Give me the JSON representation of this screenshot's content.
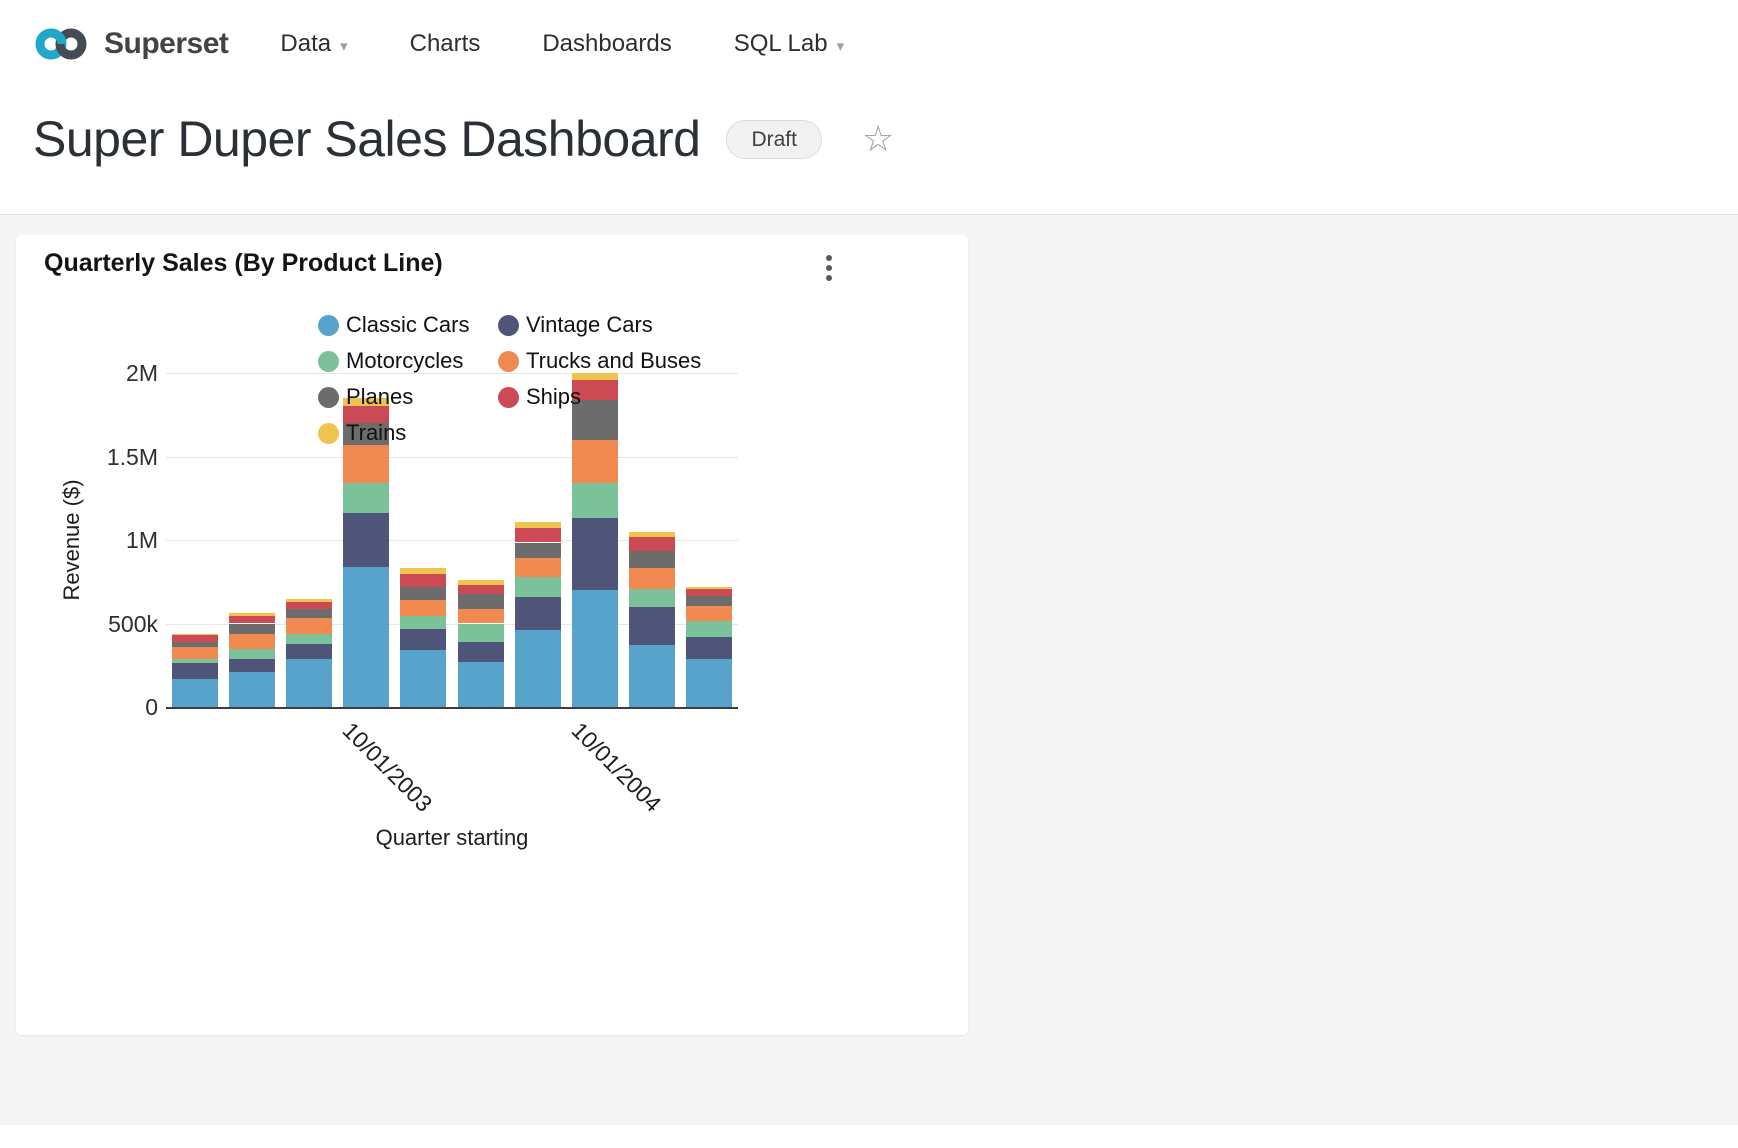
{
  "nav": {
    "brand": "Superset",
    "items": [
      {
        "label": "Data",
        "has_caret": true
      },
      {
        "label": "Charts",
        "has_caret": false
      },
      {
        "label": "Dashboards",
        "has_caret": false
      },
      {
        "label": "SQL Lab",
        "has_caret": true
      }
    ]
  },
  "header": {
    "title": "Super Duper Sales Dashboard",
    "badge": "Draft",
    "favorite_icon": "star-outline"
  },
  "chart_card": {
    "title": "Quarterly Sales (By Product Line)",
    "menu_icon": "kebab-menu"
  },
  "brand_colors": {
    "logo_teal": "#20A7C9",
    "logo_dark": "#444B54"
  },
  "chart_data": {
    "type": "bar",
    "stacked": true,
    "title": "Quarterly Sales (By Product Line)",
    "xlabel": "Quarter starting",
    "ylabel": "Revenue ($)",
    "ylim": [
      0,
      2000000
    ],
    "grid": true,
    "legend_position": "top",
    "num_bars": 10,
    "yticks": [
      {
        "value": 0,
        "label": "0"
      },
      {
        "value": 500000,
        "label": "500k"
      },
      {
        "value": 1000000,
        "label": "1M"
      },
      {
        "value": 1500000,
        "label": "1.5M"
      },
      {
        "value": 2000000,
        "label": "2M"
      }
    ],
    "x_visible_tick_labels": [
      {
        "index": 3,
        "label": "10/01/2003"
      },
      {
        "index": 7,
        "label": "10/01/2004"
      }
    ],
    "series": [
      {
        "name": "Classic Cars",
        "color": "#57A3CB",
        "values": [
          170000,
          210000,
          290000,
          840000,
          340000,
          270000,
          460000,
          700000,
          370000,
          290000
        ]
      },
      {
        "name": "Vintage Cars",
        "color": "#4E5578",
        "values": [
          95000,
          80000,
          85000,
          320000,
          130000,
          120000,
          200000,
          430000,
          230000,
          130000
        ]
      },
      {
        "name": "Motorcycles",
        "color": "#7BC29B",
        "values": [
          25000,
          55000,
          60000,
          180000,
          75000,
          110000,
          120000,
          210000,
          105000,
          95000
        ]
      },
      {
        "name": "Trucks and Buses",
        "color": "#F08A51",
        "values": [
          70000,
          95000,
          100000,
          230000,
          95000,
          85000,
          115000,
          260000,
          130000,
          90000
        ]
      },
      {
        "name": "Planes",
        "color": "#6C6C6C",
        "values": [
          30000,
          60000,
          50000,
          130000,
          80000,
          90000,
          90000,
          240000,
          100000,
          60000
        ]
      },
      {
        "name": "Ships",
        "color": "#CB4A53",
        "values": [
          40000,
          45000,
          45000,
          100000,
          75000,
          55000,
          85000,
          120000,
          85000,
          40000
        ]
      },
      {
        "name": "Trains",
        "color": "#EEC34E",
        "values": [
          10000,
          15000,
          15000,
          50000,
          35000,
          30000,
          40000,
          40000,
          30000,
          15000
        ]
      }
    ]
  }
}
